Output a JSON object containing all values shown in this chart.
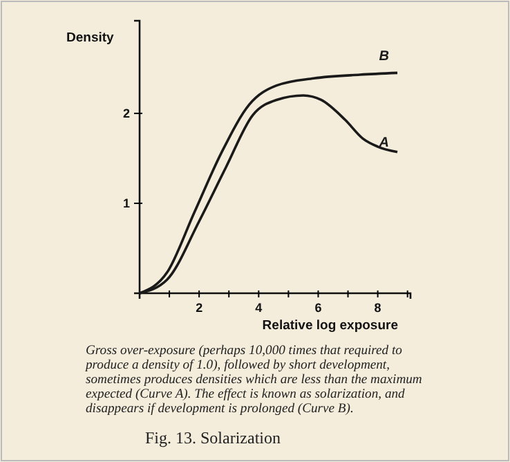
{
  "chart_data": {
    "type": "line",
    "title": "Fig. 13. Solarization",
    "xlabel": "Relative log exposure",
    "ylabel": "Density",
    "xlim": [
      0,
      9.1
    ],
    "ylim": [
      0,
      3.03
    ],
    "xticks": [
      {
        "value": 1,
        "label": null
      },
      2,
      {
        "value": 3,
        "label": null
      },
      4,
      {
        "value": 5,
        "label": null
      },
      6,
      {
        "value": 7,
        "label": null
      },
      8,
      {
        "value": 9,
        "label": null
      }
    ],
    "yticks": [
      1,
      2
    ],
    "series": [
      {
        "name": "B",
        "color": "#1a1a1a",
        "x": [
          0,
          0.92,
          1.84,
          2.76,
          3.69,
          4.6,
          5.85,
          7.4,
          8.66
        ],
        "values": [
          0,
          0.23,
          0.9,
          1.57,
          2.1,
          2.31,
          2.39,
          2.43,
          2.45
        ]
      },
      {
        "name": "A",
        "color": "#1a1a1a",
        "x": [
          0,
          0.92,
          2,
          2.9,
          3.8,
          4.6,
          5.5,
          6.1,
          6.9,
          7.5,
          8,
          8.66
        ],
        "values": [
          0,
          0.15,
          0.8,
          1.4,
          1.98,
          2.15,
          2.2,
          2.15,
          1.93,
          1.72,
          1.63,
          1.57
        ]
      }
    ],
    "annotations": [
      "Gross over-exposure (perhaps 10,000 times that required to produce a density of 1.0), followed by short development, sometimes produces densities which are less than the maximum expected (Curve A). The effect is known as solarization, and disappears if development is prolonged (Curve B)."
    ],
    "marker": "none",
    "line_style": "solid",
    "grid": false,
    "legend": false
  }
}
